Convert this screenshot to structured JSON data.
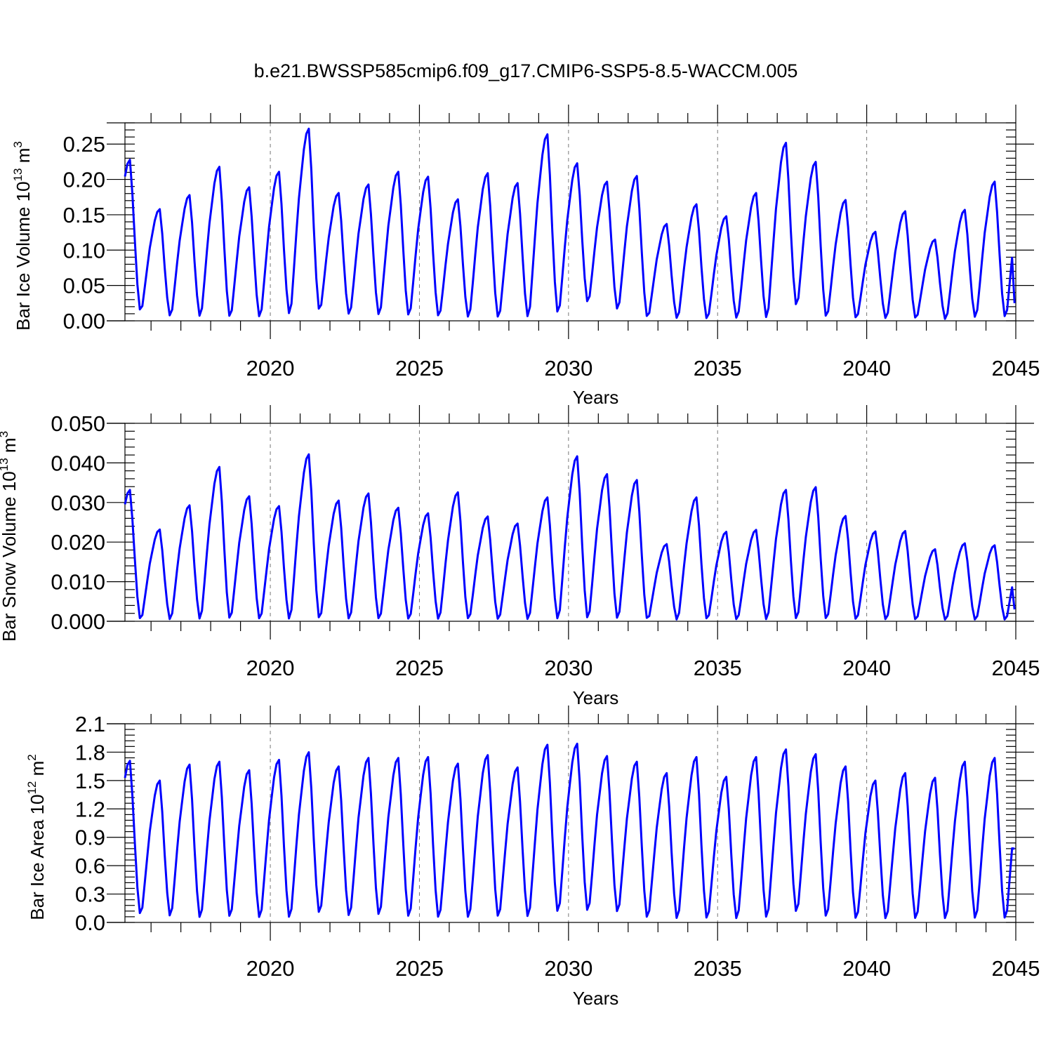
{
  "title": "b.e21.BWSSP585cmip6.f09_g17.CMIP6-SSP5-8.5-WACCM.005",
  "colors": {
    "series": "#0000ff",
    "axis": "#000000",
    "grid": "#777777"
  },
  "chart_data": [
    {
      "type": "line",
      "name": "panel-ice-volume",
      "title": "b.e21.BWSSP585cmip6.f09_g17.CMIP6-SSP5-8.5-WACCM.005",
      "xlabel": "Years",
      "ylabel": "Bar Ice Volume 10",
      "ylabel_sup": "13",
      "ylabel_unit": " m",
      "ylabel_unit_sup": "3",
      "xlim": [
        2015.125,
        2045.0
      ],
      "ylim": [
        0.0,
        0.28
      ],
      "xticks": [
        2020,
        2025,
        2030,
        2035,
        2040,
        2045
      ],
      "xtick_labels": [
        "2020",
        "2025",
        "2030",
        "2035",
        "2040",
        "2045"
      ],
      "yticks": [
        0.0,
        0.05,
        0.1,
        0.15,
        0.2,
        0.25
      ],
      "ytick_labels": [
        "0.00",
        "0.05",
        "0.10",
        "0.15",
        "0.20",
        "0.25"
      ],
      "grid_x": true,
      "start": 2015.125,
      "step": 0.083333,
      "peaks": [
        0.228,
        0.158,
        0.178,
        0.218,
        0.189,
        0.211,
        0.272,
        0.181,
        0.193,
        0.211,
        0.204,
        0.172,
        0.209,
        0.195,
        0.264,
        0.223,
        0.197,
        0.205,
        0.137,
        0.165,
        0.148,
        0.181,
        0.252,
        0.225,
        0.171,
        0.126,
        0.155,
        0.115,
        0.157,
        0.197
      ],
      "troughs": [
        0.011,
        0.004,
        0.003,
        0.002,
        0.002,
        0.006,
        0.011,
        0.006,
        0.005,
        0.004,
        0.003,
        0.002,
        0.001,
        0.002,
        0.007,
        0.023,
        0.013,
        0.002,
        0.001,
        0.0,
        0.001,
        0.001,
        0.018,
        0.002,
        0.001,
        0.001,
        0.001,
        0.0,
        0.002,
        0.002
      ],
      "end_value": 0.025,
      "series_name": "ice volume"
    },
    {
      "type": "line",
      "name": "panel-snow-volume",
      "xlabel": "Years",
      "ylabel": "Bar Snow Volume 10",
      "ylabel_sup": "13",
      "ylabel_unit": " m",
      "ylabel_unit_sup": "3",
      "xlim": [
        2015.125,
        2045.0
      ],
      "ylim": [
        0.0,
        0.05
      ],
      "xticks": [
        2020,
        2025,
        2030,
        2035,
        2040,
        2045
      ],
      "xtick_labels": [
        "2020",
        "2025",
        "2030",
        "2035",
        "2040",
        "2045"
      ],
      "yticks": [
        0.0,
        0.01,
        0.02,
        0.03,
        0.04,
        0.05
      ],
      "ytick_labels": [
        "0.000",
        "0.010",
        "0.020",
        "0.030",
        "0.040",
        "0.050"
      ],
      "grid_x": true,
      "start": 2015.125,
      "step": 0.083333,
      "peaks": [
        0.0332,
        0.0232,
        0.0293,
        0.039,
        0.0316,
        0.0291,
        0.0422,
        0.0305,
        0.0323,
        0.0287,
        0.0273,
        0.0326,
        0.0265,
        0.0247,
        0.0313,
        0.0417,
        0.0372,
        0.0357,
        0.0195,
        0.0313,
        0.0226,
        0.0231,
        0.0332,
        0.0339,
        0.0266,
        0.0227,
        0.0228,
        0.0182,
        0.0197,
        0.0192
      ],
      "troughs": [
        0.0,
        0.0,
        0.0,
        0.0,
        0.0,
        0.0,
        0.0,
        0.0,
        0.0,
        0.0,
        0.0,
        0.0,
        0.0,
        0.0,
        0.0,
        0.0,
        0.0,
        0.0,
        0.0,
        0.0,
        0.0,
        0.0,
        0.0,
        0.0,
        0.0,
        0.0,
        0.0,
        0.0,
        0.0,
        0.0
      ],
      "end_value": 0.003,
      "series_name": "snow volume"
    },
    {
      "type": "line",
      "name": "panel-ice-area",
      "xlabel": "Years",
      "ylabel": "Bar Ice Area 10",
      "ylabel_sup": "12",
      "ylabel_unit": " m",
      "ylabel_unit_sup": "2",
      "xlim": [
        2015.125,
        2045.0
      ],
      "ylim": [
        0.0,
        2.1
      ],
      "xticks": [
        2020,
        2025,
        2030,
        2035,
        2040,
        2045
      ],
      "xtick_labels": [
        "2020",
        "2025",
        "2030",
        "2035",
        "2040",
        "2045"
      ],
      "yticks": [
        0.0,
        0.3,
        0.6,
        0.9,
        1.2,
        1.5,
        1.8,
        2.1
      ],
      "ytick_labels": [
        "0.0",
        "0.3",
        "0.6",
        "0.9",
        "1.2",
        "1.5",
        "1.8",
        "2.1"
      ],
      "grid_x": true,
      "start": 2015.125,
      "step": 0.083333,
      "peaks": [
        1.71,
        1.5,
        1.67,
        1.7,
        1.61,
        1.72,
        1.8,
        1.65,
        1.74,
        1.74,
        1.75,
        1.68,
        1.77,
        1.64,
        1.88,
        1.89,
        1.76,
        1.7,
        1.58,
        1.75,
        1.54,
        1.75,
        1.83,
        1.78,
        1.65,
        1.5,
        1.58,
        1.53,
        1.7,
        1.74
      ],
      "troughs": [
        0.06,
        0.04,
        0.02,
        0.03,
        0.02,
        0.02,
        0.07,
        0.04,
        0.05,
        0.03,
        0.02,
        0.02,
        0.03,
        0.03,
        0.08,
        0.09,
        0.08,
        0.02,
        0.01,
        0.01,
        0.01,
        0.02,
        0.08,
        0.03,
        0.01,
        0.01,
        0.01,
        0.01,
        0.01,
        0.01
      ],
      "end_value": 0.78,
      "series_name": "ice area"
    }
  ]
}
